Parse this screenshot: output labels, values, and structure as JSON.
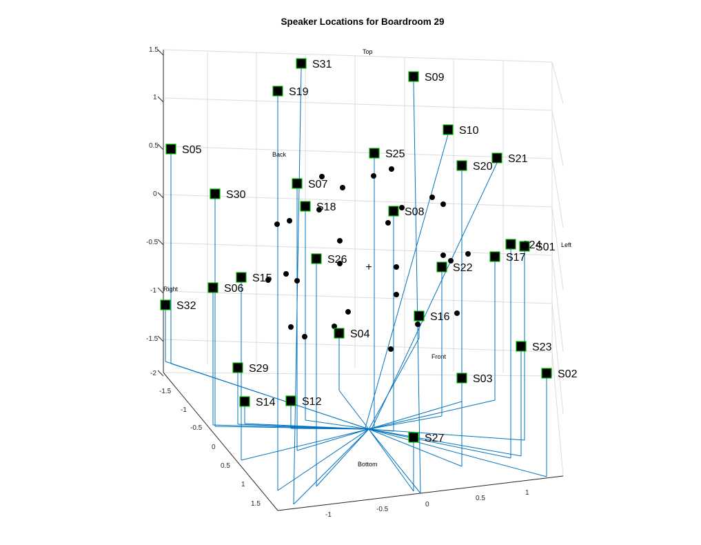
{
  "chart_data": {
    "type": "scatter",
    "title": "Speaker Locations for Boardroom 29",
    "z_ticks": [
      "1.5",
      "1",
      "0.5",
      "0",
      "-0.5",
      "-1",
      "-1.5",
      "-2"
    ],
    "y_ticks": [
      "-1.5",
      "-1",
      "-0.5",
      "0",
      "0.5",
      "1",
      "1.5"
    ],
    "x_ticks": [
      "-1",
      "-0.5",
      "0",
      "0.5",
      "1"
    ],
    "annotations": {
      "top": "Top",
      "back": "Back",
      "left": "Left",
      "right": "Right",
      "front": "Front",
      "bottom": "Bottom"
    },
    "speakers": [
      {
        "id": "S31",
        "px": [
          437,
          92
        ],
        "base": [
          426,
          731
        ]
      },
      {
        "id": "S09",
        "px": [
          600,
          111
        ],
        "base": [
          610,
          715
        ]
      },
      {
        "id": "S19",
        "px": [
          403,
          132
        ],
        "base": [
          403,
          711
        ]
      },
      {
        "id": "S10",
        "px": [
          650,
          188
        ],
        "base": [
          530,
          620
        ]
      },
      {
        "id": "S05",
        "px": [
          248,
          216
        ],
        "base": [
          248,
          527
        ]
      },
      {
        "id": "S25",
        "px": [
          543,
          222
        ],
        "base": [
          543,
          621
        ]
      },
      {
        "id": "S21",
        "px": [
          721,
          229
        ],
        "base": [
          540,
          620
        ]
      },
      {
        "id": "S20",
        "px": [
          670,
          240
        ],
        "base": [
          670,
          676
        ]
      },
      {
        "id": "S07",
        "px": [
          431,
          266
        ],
        "base": [
          431,
          653
        ]
      },
      {
        "id": "S30",
        "px": [
          312,
          281
        ],
        "base": [
          312,
          618
        ]
      },
      {
        "id": "S18",
        "px": [
          443,
          299
        ],
        "base": [
          443,
          609
        ]
      },
      {
        "id": "S08",
        "px": [
          571,
          306
        ],
        "base": [
          571,
          625
        ]
      },
      {
        "id": "S24",
        "px": [
          741,
          354
        ],
        "base": [
          741,
          664
        ]
      },
      {
        "id": "S01",
        "px": [
          761,
          357
        ],
        "base": [
          761,
          638
        ]
      },
      {
        "id": "S17",
        "px": [
          718,
          372
        ],
        "base": [
          718,
          580
        ]
      },
      {
        "id": "S26",
        "px": [
          459,
          375
        ],
        "base": [
          459,
          705
        ]
      },
      {
        "id": "S22",
        "px": [
          641,
          387
        ],
        "base": [
          641,
          603
        ]
      },
      {
        "id": "S15",
        "px": [
          350,
          402
        ],
        "base": [
          350,
          667
        ]
      },
      {
        "id": "S06",
        "px": [
          309,
          417
        ],
        "base": [
          309,
          616
        ]
      },
      {
        "id": "S32",
        "px": [
          240,
          442
        ],
        "base": [
          240,
          524
        ]
      },
      {
        "id": "S16",
        "px": [
          608,
          458
        ],
        "base": [
          608,
          490
        ]
      },
      {
        "id": "S04",
        "px": [
          492,
          483
        ],
        "base": [
          492,
          566
        ]
      },
      {
        "id": "S23",
        "px": [
          756,
          502
        ],
        "base": [
          756,
          661
        ]
      },
      {
        "id": "S29",
        "px": [
          345,
          533
        ],
        "base": [
          345,
          615
        ]
      },
      {
        "id": "S02",
        "px": [
          793,
          541
        ],
        "base": [
          793,
          691
        ]
      },
      {
        "id": "S03",
        "px": [
          670,
          548
        ],
        "base": [
          670,
          582
        ]
      },
      {
        "id": "S14",
        "px": [
          355,
          582
        ],
        "base": [
          355,
          614
        ]
      },
      {
        "id": "S12",
        "px": [
          422,
          581
        ],
        "base": [
          422,
          621
        ]
      },
      {
        "id": "S27",
        "px": [
          600,
          634
        ],
        "base": [
          600,
          712
        ]
      }
    ],
    "points": [
      [
        467,
        256
      ],
      [
        542,
        255
      ],
      [
        568,
        245
      ],
      [
        497,
        272
      ],
      [
        627,
        286
      ],
      [
        643,
        296
      ],
      [
        402,
        325
      ],
      [
        420,
        320
      ],
      [
        463,
        304
      ],
      [
        583,
        301
      ],
      [
        563,
        323
      ],
      [
        493,
        349
      ],
      [
        493,
        382
      ],
      [
        575,
        387
      ],
      [
        643,
        370
      ],
      [
        654,
        378
      ],
      [
        679,
        368
      ],
      [
        415,
        397
      ],
      [
        389,
        406
      ],
      [
        431,
        407
      ],
      [
        575,
        427
      ],
      [
        505,
        452
      ],
      [
        663,
        454
      ],
      [
        606,
        470
      ],
      [
        422,
        474
      ],
      [
        485,
        473
      ],
      [
        442,
        488
      ],
      [
        567,
        506
      ]
    ],
    "center_marker": "+"
  }
}
